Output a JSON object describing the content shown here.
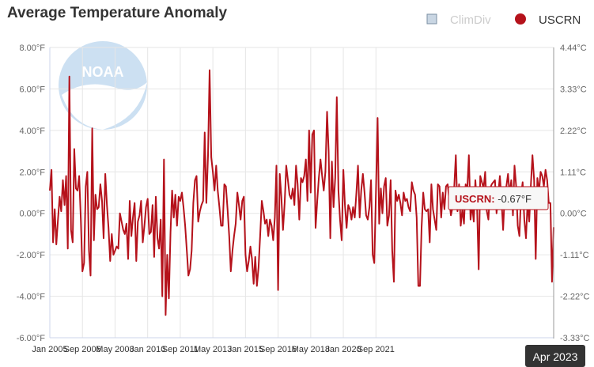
{
  "chart_data": {
    "type": "line",
    "title": "Average Temperature Anomaly",
    "legend": [
      {
        "name": "ClimDiv",
        "color": "#c9d6e3",
        "state": "inactive",
        "symbol": "square"
      },
      {
        "name": "USCRN",
        "color": "#b5121b",
        "state": "active",
        "symbol": "circle"
      }
    ],
    "series_color": "#b5121b",
    "y_left": {
      "ticks": [
        8,
        6,
        4,
        2,
        0,
        -2,
        -4,
        -6
      ],
      "tick_labels": [
        "8.00°F",
        "6.00°F",
        "4.00°F",
        "2.00°F",
        "0.00°F",
        "-2.00°F",
        "-4.00°F",
        "-6.00°F"
      ],
      "ylim": [
        -6,
        8
      ],
      "unit": "°F"
    },
    "y_right": {
      "tick_labels": [
        "4.44°C",
        "3.33°C",
        "2.22°C",
        "1.11°C",
        "0.00°C",
        "-1.11°C",
        "-2.22°C",
        "-3.33°C"
      ],
      "ylim": [
        -3.33,
        4.44
      ],
      "unit": "°C"
    },
    "x_axis": {
      "start": "Jan 2005",
      "end": "Apr 2023",
      "tick_labels": [
        "Jan 2005",
        "Sep 2006",
        "May 2008",
        "Jan 2010",
        "Sep 2011",
        "May 2013",
        "Jan 2015",
        "Sep 2016",
        "May 2018",
        "Jan 2020",
        "Sep 2021"
      ],
      "tick_months_from_start": [
        0,
        20,
        40,
        60,
        80,
        100,
        120,
        140,
        160,
        180,
        200
      ]
    },
    "crosshair_label": "Apr 2023",
    "tooltip": {
      "series": "USCRN",
      "value": "-0.67°F"
    },
    "values": [
      1.1,
      2.1,
      -1.4,
      0.2,
      -1.5,
      -0.3,
      0.8,
      0.1,
      1.6,
      0.4,
      1.8,
      -1.7,
      6.6,
      -0.8,
      -1.4,
      3.1,
      1.2,
      1.1,
      1.8,
      -0.3,
      -2.8,
      -2.4,
      1.3,
      2.0,
      -1.8,
      -3.0,
      4.1,
      -1.3,
      0.9,
      0.2,
      0.3,
      1.4,
      0.6,
      -1.2,
      1.9,
      0.4,
      -0.7,
      -2.3,
      -1.0,
      -2.0,
      -1.8,
      -1.6,
      -1.7,
      0.0,
      -0.4,
      -0.8,
      -1.0,
      -0.5,
      -2.2,
      0.6,
      -1.1,
      -0.2,
      0.5,
      -2.3,
      -0.4,
      -0.1,
      0.6,
      -1.4,
      -0.6,
      0.3,
      0.7,
      -1.0,
      -0.9,
      0.4,
      -2.1,
      0.8,
      -1.2,
      -1.7,
      -0.3,
      -4.0,
      2.6,
      -4.9,
      -2.0,
      -4.1,
      -0.9,
      1.1,
      -0.2,
      0.9,
      -0.6,
      0.8,
      0.6,
      1.0,
      0.3,
      -0.6,
      -1.8,
      -3.0,
      -2.7,
      -1.8,
      0.5,
      1.6,
      1.8,
      -0.4,
      0.1,
      0.4,
      0.6,
      3.9,
      0.5,
      2.8,
      6.9,
      2.7,
      2.0,
      1.1,
      2.3,
      1.1,
      0.3,
      -0.6,
      -0.6,
      1.4,
      1.3,
      0.2,
      -1.1,
      -2.8,
      -1.8,
      -1.1,
      -0.5,
      1.0,
      0.4,
      -0.3,
      0.6,
      0.8,
      -2.0,
      -2.8,
      -2.3,
      -1.6,
      -2.2,
      -3.4,
      -2.1,
      -3.5,
      -2.6,
      -1.1,
      0.6,
      0.1,
      -0.5,
      -0.3,
      -1.1,
      -0.3,
      -0.6,
      -1.3,
      -0.2,
      2.3,
      -3.7,
      1.9,
      0.8,
      -0.8,
      0.5,
      2.3,
      1.6,
      0.9,
      0.7,
      1.2,
      0.4,
      2.3,
      1.4,
      -0.3,
      1.7,
      1.5,
      1.8,
      2.6,
      0.6,
      4.0,
      1.0,
      3.8,
      4.0,
      -0.7,
      0.6,
      1.7,
      2.6,
      1.8,
      1.1,
      2.0,
      4.9,
      3.0,
      -1.2,
      2.5,
      0.3,
      1.7,
      5.6,
      1.1,
      -0.3,
      -1.3,
      2.1,
      0.4,
      -0.7,
      0.4,
      0.2,
      -0.3,
      0.3,
      -0.2,
      1.0,
      2.3,
      -0.2,
      1.1,
      1.9,
      1.0,
      -0.1,
      -0.3,
      0.3,
      1.6,
      -2.0,
      -2.4,
      1.0,
      4.6,
      -0.5,
      1.2,
      0.0,
      1.3,
      1.7,
      -0.6,
      -0.1,
      1.6,
      -1.8,
      -3.3,
      1.1,
      0.6,
      0.9,
      0.5,
      -0.1,
      1.0,
      0.6,
      0.7,
      0.3,
      0.1,
      1.5,
      1.1,
      0.9,
      -0.2,
      -3.5,
      -3.5,
      -0.7,
      1.0,
      0.2,
      0.1,
      0.2,
      -1.4,
      1.4,
      0.2,
      -0.3,
      -0.8,
      1.4,
      1.3,
      -0.2,
      1.0,
      0.2,
      1.3,
      1.4,
      0.6,
      -0.1,
      0.3,
      1.2,
      2.8,
      0.1,
      1.4,
      -0.6,
      0.2,
      -0.5,
      1.4,
      1.1,
      2.8,
      -0.3,
      0.4,
      -0.4,
      1.6,
      0.4,
      -2.7,
      1.8,
      1.5,
      1.2,
      2.0,
      0.1,
      -0.3,
      1.2,
      1.4,
      1.5,
      1.6,
      0.0,
      0.9,
      1.8,
      0.7,
      -0.8,
      1.0,
      1.3,
      1.9,
      0.9,
      1.6,
      -0.1,
      2.3,
      1.3,
      -0.6,
      -1.1,
      0.9,
      1.5,
      -0.3,
      -1.2,
      0.5,
      -0.4,
      1.3,
      2.8,
      1.6,
      -2.2,
      1.7,
      1.0,
      2.0,
      1.8,
      1.3,
      2.1,
      1.6,
      0.5,
      0.5,
      -3.3,
      -0.67
    ]
  }
}
